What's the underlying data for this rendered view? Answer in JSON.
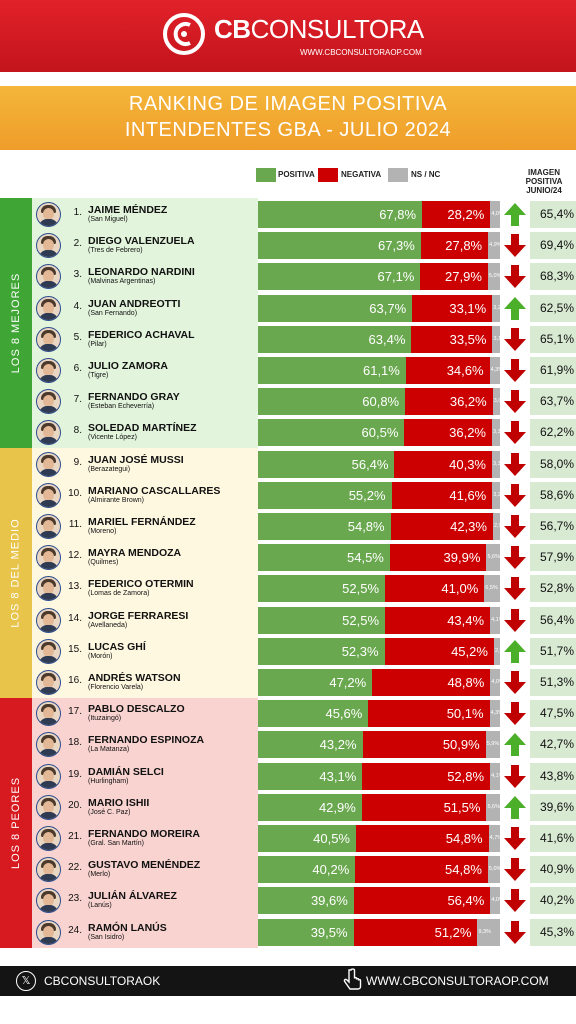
{
  "header": {
    "brand_bold": "CB",
    "brand_thin": "CONSULTORA",
    "brand_url": "WWW.CBCONSULTORAOP.COM",
    "title_line1": "RANKING DE IMAGEN POSITIVA",
    "title_line2": "INTENDENTES GBA - JULIO 2024"
  },
  "legend": {
    "positive": "POSITIVA",
    "negative": "NEGATIVA",
    "nsnc": "NS / NC",
    "prev_line1": "IMAGEN",
    "prev_line2": "POSITIVA",
    "prev_line3": "JUNIO/24"
  },
  "groups": [
    {
      "label": "LOS 8 MEJORES",
      "color": "#3fa535",
      "panel_color": "#e2f4dc"
    },
    {
      "label": "LOS 8 DEL MEDIO",
      "color": "#e8c44a",
      "panel_color": "#fff8e1"
    },
    {
      "label": "LOS 8 PEORES",
      "color": "#d71920",
      "panel_color": "#f8d3d0"
    }
  ],
  "colors": {
    "positive": "#6aa84f",
    "negative": "#cc0000",
    "nsnc": "#b3b3b3",
    "arrow_up": "#4caf2a",
    "arrow_down": "#c00000"
  },
  "chart_data": {
    "type": "bar",
    "stacked": true,
    "orientation": "horizontal",
    "categories": [
      "Jaime Méndez",
      "Diego Valenzuela",
      "Leonardo Nardini",
      "Juan Andreotti",
      "Federico Achaval",
      "Julio Zamora",
      "Fernando Gray",
      "Soledad Martínez",
      "Juan José Mussi",
      "Mariano Cascallares",
      "Mariel Fernández",
      "Mayra Mendoza",
      "Federico Otermin",
      "Jorge Ferraresi",
      "Lucas Ghí",
      "Andrés Watson",
      "Pablo Descalzo",
      "Fernando Espinoza",
      "Damián Selci",
      "Mario Ishii",
      "Fernando Moreira",
      "Gustavo Menéndez",
      "Julián Álvarez",
      "Ramón Lanús"
    ],
    "series": [
      {
        "name": "POSITIVA",
        "values": [
          67.8,
          67.3,
          67.1,
          63.7,
          63.4,
          61.1,
          60.8,
          60.5,
          56.4,
          55.2,
          54.8,
          54.5,
          52.5,
          52.5,
          52.3,
          47.2,
          45.6,
          43.2,
          43.1,
          42.9,
          40.5,
          40.2,
          39.6,
          39.5
        ]
      },
      {
        "name": "NEGATIVA",
        "values": [
          28.2,
          27.8,
          27.9,
          33.1,
          33.5,
          34.6,
          36.2,
          36.2,
          40.3,
          41.6,
          42.3,
          39.9,
          41.0,
          43.4,
          45.2,
          48.8,
          50.1,
          50.9,
          52.8,
          51.5,
          54.8,
          54.8,
          56.4,
          51.2
        ]
      },
      {
        "name": "NS / NC",
        "values": [
          4.0,
          4.9,
          5.0,
          3.2,
          3.1,
          4.3,
          3.0,
          3.3,
          3.3,
          3.2,
          2.9,
          5.6,
          6.5,
          4.1,
          2.5,
          4.0,
          4.3,
          5.9,
          4.1,
          5.6,
          4.7,
          5.0,
          4.0,
          9.3
        ]
      }
    ],
    "previous": {
      "name": "IMAGEN POSITIVA JUNIO/24",
      "values": [
        65.4,
        69.4,
        68.3,
        62.5,
        65.1,
        61.9,
        63.7,
        62.2,
        58.0,
        58.6,
        56.7,
        57.9,
        52.8,
        56.4,
        51.7,
        51.3,
        47.5,
        42.7,
        43.8,
        39.6,
        41.6,
        40.9,
        40.2,
        45.3
      ]
    },
    "xlim": [
      0,
      100
    ]
  },
  "rows": [
    {
      "rank": "1.",
      "name": "JAIME MÉNDEZ",
      "place": "(San Miguel)",
      "pos": "67,8%",
      "neg": "28,2%",
      "ns": "4,0%",
      "trend": "up",
      "prev": "65,4%",
      "group": 0
    },
    {
      "rank": "2.",
      "name": "DIEGO VALENZUELA",
      "place": "(Tres de Febrero)",
      "pos": "67,3%",
      "neg": "27,8%",
      "ns": "4,9%",
      "trend": "down",
      "prev": "69,4%",
      "group": 0
    },
    {
      "rank": "3.",
      "name": "LEONARDO NARDINI",
      "place": "(Malvinas Argentinas)",
      "pos": "67,1%",
      "neg": "27,9%",
      "ns": "5,0%",
      "trend": "down",
      "prev": "68,3%",
      "group": 0
    },
    {
      "rank": "4.",
      "name": "JUAN ANDREOTTI",
      "place": "(San Fernando)",
      "pos": "63,7%",
      "neg": "33,1%",
      "ns": "3,2%",
      "trend": "up",
      "prev": "62,5%",
      "group": 0
    },
    {
      "rank": "5.",
      "name": "FEDERICO ACHAVAL",
      "place": "(Pilar)",
      "pos": "63,4%",
      "neg": "33,5%",
      "ns": "3,1%",
      "trend": "down",
      "prev": "65,1%",
      "group": 0
    },
    {
      "rank": "6.",
      "name": "JULIO ZAMORA",
      "place": "(Tigre)",
      "pos": "61,1%",
      "neg": "34,6%",
      "ns": "4,3%",
      "trend": "down",
      "prev": "61,9%",
      "group": 0
    },
    {
      "rank": "7.",
      "name": "FERNANDO GRAY",
      "place": "(Esteban Echeverría)",
      "pos": "60,8%",
      "neg": "36,2%",
      "ns": "3,0%",
      "trend": "down",
      "prev": "63,7%",
      "group": 0
    },
    {
      "rank": "8.",
      "name": "SOLEDAD MARTÍNEZ",
      "place": "(Vicente López)",
      "pos": "60,5%",
      "neg": "36,2%",
      "ns": "3,3%",
      "trend": "down",
      "prev": "62,2%",
      "group": 0
    },
    {
      "rank": "9.",
      "name": "JUAN JOSÉ MUSSI",
      "place": "(Berazategui)",
      "pos": "56,4%",
      "neg": "40,3%",
      "ns": "3,3%",
      "trend": "down",
      "prev": "58,0%",
      "group": 1
    },
    {
      "rank": "10.",
      "name": "MARIANO CASCALLARES",
      "place": "(Almirante Brown)",
      "pos": "55,2%",
      "neg": "41,6%",
      "ns": "3,2%",
      "trend": "down",
      "prev": "58,6%",
      "group": 1
    },
    {
      "rank": "11.",
      "name": "MARIEL FERNÁNDEZ",
      "place": "(Moreno)",
      "pos": "54,8%",
      "neg": "42,3%",
      "ns": "2,9%",
      "trend": "down",
      "prev": "56,7%",
      "group": 1
    },
    {
      "rank": "12.",
      "name": "MAYRA MENDOZA",
      "place": "(Quilmes)",
      "pos": "54,5%",
      "neg": "39,9%",
      "ns": "5,6%",
      "trend": "down",
      "prev": "57,9%",
      "group": 1
    },
    {
      "rank": "13.",
      "name": "FEDERICO OTERMIN",
      "place": "(Lomas de Zamora)",
      "pos": "52,5%",
      "neg": "41,0%",
      "ns": "6,5%",
      "trend": "down",
      "prev": "52,8%",
      "group": 1
    },
    {
      "rank": "14.",
      "name": "JORGE FERRARESI",
      "place": "(Avellaneda)",
      "pos": "52,5%",
      "neg": "43,4%",
      "ns": "4,1%",
      "trend": "down",
      "prev": "56,4%",
      "group": 1
    },
    {
      "rank": "15.",
      "name": "LUCAS GHÍ",
      "place": "(Morón)",
      "pos": "52,3%",
      "neg": "45,2%",
      "ns": "2,5%",
      "trend": "up",
      "prev": "51,7%",
      "group": 1
    },
    {
      "rank": "16.",
      "name": "ANDRÉS WATSON",
      "place": "(Florencio Varela)",
      "pos": "47,2%",
      "neg": "48,8%",
      "ns": "4,0%",
      "trend": "down",
      "prev": "51,3%",
      "group": 1
    },
    {
      "rank": "17.",
      "name": "PABLO DESCALZO",
      "place": "(Ituzaingó)",
      "pos": "45,6%",
      "neg": "50,1%",
      "ns": "4,3%",
      "trend": "down",
      "prev": "47,5%",
      "group": 2
    },
    {
      "rank": "18.",
      "name": "FERNANDO ESPINOZA",
      "place": "(La Matanza)",
      "pos": "43,2%",
      "neg": "50,9%",
      "ns": "5,9%",
      "trend": "up",
      "prev": "42,7%",
      "group": 2
    },
    {
      "rank": "19.",
      "name": "DAMIÁN SELCI",
      "place": "(Hurlingham)",
      "pos": "43,1%",
      "neg": "52,8%",
      "ns": "4,1%",
      "trend": "down",
      "prev": "43,8%",
      "group": 2
    },
    {
      "rank": "20.",
      "name": "MARIO ISHII",
      "place": "(José C. Paz)",
      "pos": "42,9%",
      "neg": "51,5%",
      "ns": "5,6%",
      "trend": "up",
      "prev": "39,6%",
      "group": 2
    },
    {
      "rank": "21.",
      "name": "FERNANDO MOREIRA",
      "place": "(Gral. San Martín)",
      "pos": "40,5%",
      "neg": "54,8%",
      "ns": "4,7%",
      "trend": "down",
      "prev": "41,6%",
      "group": 2
    },
    {
      "rank": "22.",
      "name": "GUSTAVO MENÉNDEZ",
      "place": "(Merlo)",
      "pos": "40,2%",
      "neg": "54,8%",
      "ns": "5,0%",
      "trend": "down",
      "prev": "40,9%",
      "group": 2
    },
    {
      "rank": "23.",
      "name": "JULIÁN ÁLVAREZ",
      "place": "(Lanús)",
      "pos": "39,6%",
      "neg": "56,4%",
      "ns": "4,0%",
      "trend": "down",
      "prev": "40,2%",
      "group": 2
    },
    {
      "rank": "24.",
      "name": "RAMÓN LANÚS",
      "place": "(San Isidro)",
      "pos": "39,5%",
      "neg": "51,2%",
      "ns": "9,3%",
      "trend": "down",
      "prev": "45,3%",
      "group": 2
    }
  ],
  "footer": {
    "x_icon": "x-logo-icon",
    "left_text": "CBCONSULTORAOK",
    "pointer_icon": "hand-pointer-icon",
    "right_text": "WWW.CBCONSULTORAOP.COM"
  }
}
